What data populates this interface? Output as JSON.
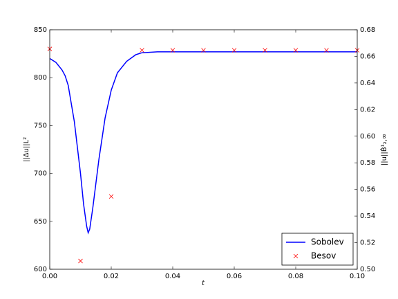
{
  "chart_data": {
    "type": "line",
    "xlabel": "t",
    "ylabel": "||Δu||L²",
    "y2label": "||u||Ḃ¹₂,∞",
    "xlim": [
      0,
      0.1
    ],
    "xticks": [
      {
        "value": 0,
        "label": "0.00"
      },
      0.02,
      0.04,
      0.06,
      0.08,
      {
        "value": 0.1,
        "label": "0.10"
      }
    ],
    "ylim": [
      600,
      850
    ],
    "yticks": [
      600,
      650,
      700,
      750,
      800,
      850
    ],
    "y2lim": [
      0.5,
      0.68
    ],
    "y2ticks": [
      {
        "value": 0.5,
        "label": "0.50"
      },
      0.52,
      0.54,
      0.56,
      0.58,
      {
        "value": 0.6,
        "label": "0.60"
      },
      0.62,
      0.64,
      0.66,
      0.68
    ],
    "legend": "lower right",
    "series": [
      {
        "name": "Sobolev",
        "color": "#0000ff",
        "style": "line",
        "x": [
          0,
          0.002,
          0.004,
          0.005,
          0.006,
          0.008,
          0.01,
          0.011,
          0.012,
          0.0125,
          0.013,
          0.014,
          0.016,
          0.018,
          0.02,
          0.022,
          0.025,
          0.028,
          0.03,
          0.035,
          0.04,
          0.05,
          0.06,
          0.07,
          0.08,
          0.09,
          0.1
        ],
        "values": [
          820,
          816,
          808,
          802,
          792,
          754,
          700,
          668,
          645,
          638,
          642,
          664,
          715,
          758,
          787,
          805,
          817,
          824,
          826,
          827,
          827,
          827,
          827,
          827,
          827,
          827,
          827
        ]
      },
      {
        "name": "Besov",
        "color": "#ff0000",
        "style": "x",
        "axis": "y2",
        "x": [
          0,
          0.01,
          0.02,
          0.03,
          0.04,
          0.05,
          0.06,
          0.07,
          0.08,
          0.09,
          0.1
        ],
        "values": [
          0.6656,
          0.5062,
          0.5547,
          0.6646,
          0.6646,
          0.6646,
          0.6646,
          0.6646,
          0.6646,
          0.6646,
          0.6646
        ]
      }
    ]
  }
}
